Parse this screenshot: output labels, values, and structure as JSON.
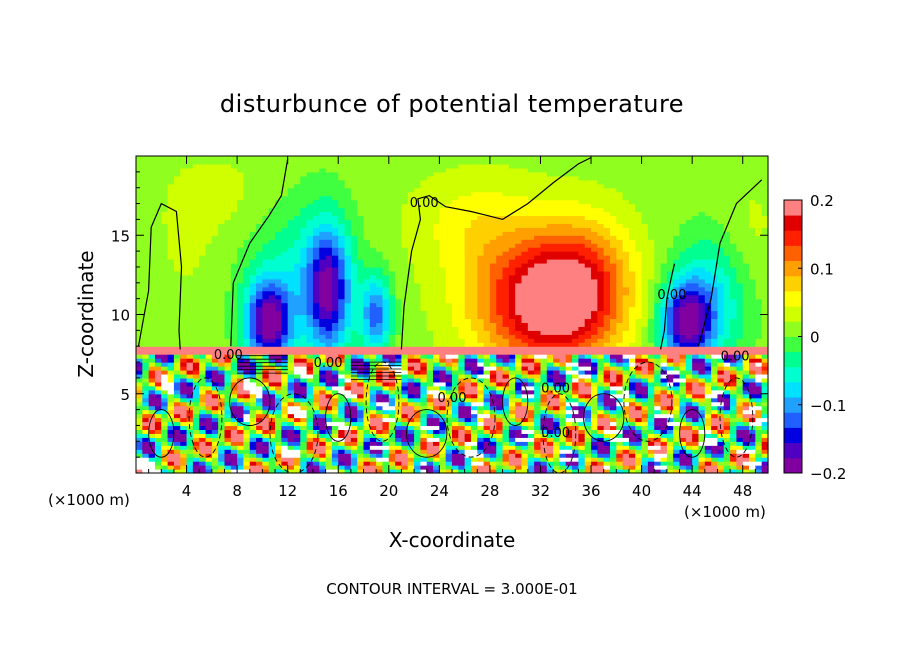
{
  "chart_data": {
    "type": "heatmap",
    "title": "disturbunce of potential temperature",
    "xlabel": "X-coordinate",
    "ylabel": "Z-coordinate",
    "xlim": [
      0,
      50
    ],
    "ylim": [
      0,
      20
    ],
    "x_ticks": [
      4,
      8,
      12,
      16,
      20,
      24,
      28,
      32,
      36,
      40,
      44,
      48
    ],
    "y_ticks": [
      5,
      10,
      15
    ],
    "x_unit_left": "(×1000 m)",
    "x_unit_right": "(×1000 m)",
    "footer": "CONTOUR INTERVAL = 3.000E-01",
    "colorbar": {
      "min": -0.2,
      "max": 0.2,
      "ticks": [
        {
          "value": 0.2,
          "label": "0.2"
        },
        {
          "value": 0.1,
          "label": "0.1"
        },
        {
          "value": 0,
          "label": "0"
        },
        {
          "value": -0.1,
          "label": "−0.1"
        },
        {
          "value": -0.2,
          "label": "−0.2"
        }
      ],
      "colors": [
        "#8000a0",
        "#5000c0",
        "#0000e0",
        "#2060ff",
        "#20a0ff",
        "#00e0ff",
        "#00ffd0",
        "#00ff90",
        "#40ff40",
        "#90ff20",
        "#d0ff00",
        "#ffff00",
        "#ffd000",
        "#ffa000",
        "#ff6000",
        "#ff2000",
        "#e00000",
        "#ff8080"
      ]
    },
    "contour_labels": [
      {
        "x": 22.8,
        "z": 17.1,
        "text": "0.00"
      },
      {
        "x": 42.4,
        "z": 11.3,
        "text": "0.00"
      },
      {
        "x": 7.3,
        "z": 7.5,
        "text": "0.00"
      },
      {
        "x": 15.2,
        "z": 7.0,
        "text": "0.00"
      },
      {
        "x": 47.4,
        "z": 7.4,
        "text": "0.00"
      },
      {
        "x": 25.0,
        "z": 4.8,
        "text": "0.00"
      },
      {
        "x": 33.2,
        "z": 2.6,
        "text": "0.00"
      },
      {
        "x": 33.2,
        "z": 5.4,
        "text": "0.00"
      }
    ],
    "field_features": [
      {
        "x": 10.5,
        "z": 9.5,
        "sx": 1.8,
        "sz": 2.6,
        "value": -0.2
      },
      {
        "x": 15.2,
        "z": 11.5,
        "sx": 1.8,
        "sz": 4.0,
        "value": -0.18
      },
      {
        "x": 19.0,
        "z": 10.0,
        "sx": 1.2,
        "sz": 2.5,
        "value": -0.13
      },
      {
        "x": 12.5,
        "z": 13.0,
        "sx": 4.0,
        "sz": 5.0,
        "value": -0.05
      },
      {
        "x": 4.0,
        "z": 14.5,
        "sx": 2.5,
        "sz": 4.5,
        "value": 0.015
      },
      {
        "x": 8.0,
        "z": 17.5,
        "sx": 5.0,
        "sz": 3.0,
        "value": 0.02
      },
      {
        "x": 33.0,
        "z": 10.5,
        "sx": 5.0,
        "sz": 4.0,
        "value": 0.16
      },
      {
        "x": 35.5,
        "z": 12.5,
        "sx": 4.0,
        "sz": 4.0,
        "value": 0.08
      },
      {
        "x": 29.0,
        "z": 12.0,
        "sx": 5.0,
        "sz": 5.0,
        "value": 0.05
      },
      {
        "x": 26.0,
        "z": 16.0,
        "sx": 5.0,
        "sz": 3.0,
        "value": 0.03
      },
      {
        "x": 43.5,
        "z": 9.5,
        "sx": 2.0,
        "sz": 2.5,
        "value": -0.18
      },
      {
        "x": 45.5,
        "z": 11.0,
        "sx": 3.0,
        "sz": 4.0,
        "value": -0.08
      },
      {
        "x": 48.5,
        "z": 15.0,
        "sx": 2.5,
        "sz": 4.0,
        "value": 0.02
      }
    ]
  }
}
